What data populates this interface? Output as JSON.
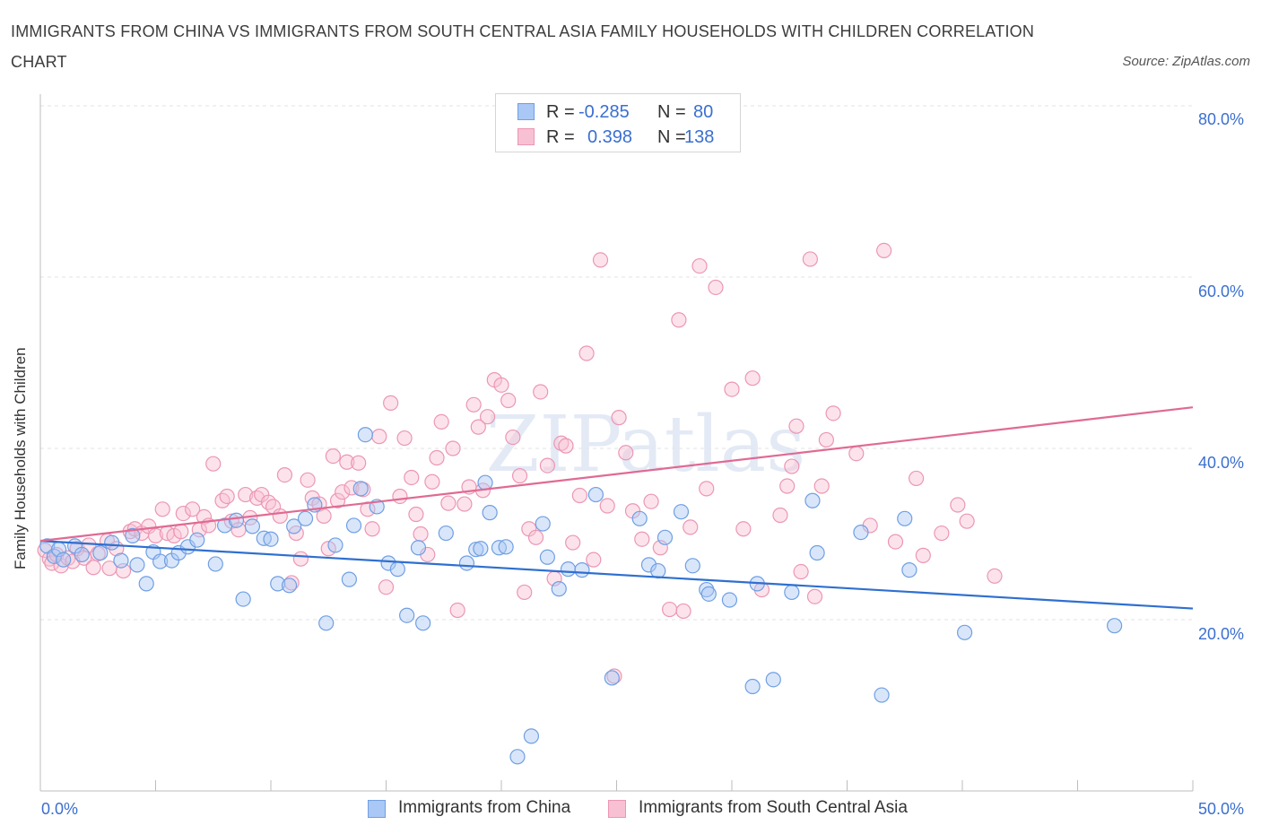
{
  "title": "IMMIGRANTS FROM CHINA VS IMMIGRANTS FROM SOUTH CENTRAL ASIA FAMILY HOUSEHOLDS WITH CHILDREN CORRELATION CHART",
  "source": "Source: ZipAtlas.com",
  "watermark": "ZIPatlas",
  "colors": {
    "china_fill": "#aac8f5",
    "china_stroke": "#6f9fe3",
    "china_line": "#2f6fd0",
    "sca_fill": "#f8c0d3",
    "sca_stroke": "#ec96b4",
    "sca_line": "#e06a93",
    "axis_label": "#3a6fd0"
  },
  "legend": {
    "r_label": "R =",
    "n_label": "N =",
    "rows": [
      {
        "series": "china",
        "r": "-0.285",
        "n": "80"
      },
      {
        "series": "sca",
        "r": "0.398",
        "n": "138"
      }
    ]
  },
  "bottom_legend": {
    "china": "Immigrants from China",
    "sca": "Immigrants from South Central Asia"
  },
  "chart_data": {
    "type": "scatter",
    "title": "IMMIGRANTS FROM CHINA VS IMMIGRANTS FROM SOUTH CENTRAL ASIA FAMILY HOUSEHOLDS WITH CHILDREN CORRELATION CHART",
    "xlabel": "",
    "ylabel": "Family Households with Children",
    "xlim": [
      0,
      50
    ],
    "ylim": [
      0,
      80
    ],
    "x_tick_labels": [
      "0.0%",
      "50.0%"
    ],
    "y_ticks": [
      20,
      40,
      60,
      80
    ],
    "y_tick_labels": [
      "20.0%",
      "40.0%",
      "60.0%",
      "80.0%"
    ],
    "grid": true,
    "legend_position": "top-center",
    "series": [
      {
        "name": "Immigrants from China",
        "key": "china",
        "R": -0.285,
        "N": 80,
        "trend": {
          "x": [
            0,
            50
          ],
          "y": [
            29.2,
            21.3
          ]
        },
        "points": [
          [
            0.3,
            28.6
          ],
          [
            0.6,
            27.4
          ],
          [
            0.8,
            28.2
          ],
          [
            1.0,
            27.0
          ],
          [
            1.5,
            28.6
          ],
          [
            1.8,
            27.6
          ],
          [
            2.6,
            27.8
          ],
          [
            3.1,
            29.0
          ],
          [
            3.5,
            26.9
          ],
          [
            4.0,
            29.8
          ],
          [
            4.2,
            26.4
          ],
          [
            4.6,
            24.2
          ],
          [
            4.9,
            27.9
          ],
          [
            5.2,
            26.8
          ],
          [
            5.7,
            26.9
          ],
          [
            6.0,
            27.8
          ],
          [
            6.4,
            28.5
          ],
          [
            6.8,
            29.3
          ],
          [
            7.6,
            26.5
          ],
          [
            8.0,
            31.0
          ],
          [
            8.5,
            31.6
          ],
          [
            8.8,
            22.4
          ],
          [
            9.2,
            30.9
          ],
          [
            9.7,
            29.5
          ],
          [
            10.0,
            29.4
          ],
          [
            10.3,
            24.2
          ],
          [
            10.8,
            24.0
          ],
          [
            11.0,
            30.9
          ],
          [
            11.5,
            31.8
          ],
          [
            11.9,
            33.4
          ],
          [
            12.4,
            19.6
          ],
          [
            12.8,
            28.7
          ],
          [
            13.4,
            24.7
          ],
          [
            13.6,
            31.0
          ],
          [
            13.9,
            35.3
          ],
          [
            14.1,
            41.6
          ],
          [
            14.6,
            33.2
          ],
          [
            15.1,
            26.6
          ],
          [
            15.5,
            25.9
          ],
          [
            15.9,
            20.5
          ],
          [
            16.4,
            28.4
          ],
          [
            16.6,
            19.6
          ],
          [
            17.6,
            30.1
          ],
          [
            18.5,
            26.6
          ],
          [
            18.9,
            28.2
          ],
          [
            19.1,
            28.3
          ],
          [
            19.3,
            36.0
          ],
          [
            19.5,
            32.5
          ],
          [
            19.9,
            28.4
          ],
          [
            20.2,
            28.5
          ],
          [
            20.7,
            4.0
          ],
          [
            21.3,
            6.4
          ],
          [
            21.8,
            31.2
          ],
          [
            22.0,
            27.3
          ],
          [
            22.5,
            23.6
          ],
          [
            22.9,
            25.9
          ],
          [
            23.5,
            25.8
          ],
          [
            24.1,
            34.6
          ],
          [
            24.8,
            13.2
          ],
          [
            26.0,
            31.8
          ],
          [
            26.4,
            26.4
          ],
          [
            26.8,
            25.7
          ],
          [
            27.1,
            29.6
          ],
          [
            27.8,
            32.6
          ],
          [
            28.3,
            26.3
          ],
          [
            28.9,
            23.5
          ],
          [
            29.0,
            23.0
          ],
          [
            29.9,
            22.3
          ],
          [
            30.9,
            12.2
          ],
          [
            31.1,
            24.2
          ],
          [
            31.8,
            13.0
          ],
          [
            32.6,
            23.2
          ],
          [
            33.5,
            33.9
          ],
          [
            33.7,
            27.8
          ],
          [
            35.6,
            30.2
          ],
          [
            36.5,
            11.2
          ],
          [
            37.5,
            31.8
          ],
          [
            37.7,
            25.8
          ],
          [
            40.1,
            18.5
          ],
          [
            46.6,
            19.3
          ]
        ]
      },
      {
        "name": "Immigrants from South Central Asia",
        "key": "sca",
        "R": 0.398,
        "N": 138,
        "trend": {
          "x": [
            0,
            50
          ],
          "y": [
            29.2,
            44.8
          ]
        },
        "points": [
          [
            0.2,
            28.1
          ],
          [
            0.4,
            27.1
          ],
          [
            0.5,
            26.6
          ],
          [
            0.7,
            27.6
          ],
          [
            0.9,
            26.3
          ],
          [
            1.2,
            27.2
          ],
          [
            1.4,
            26.8
          ],
          [
            1.6,
            28.3
          ],
          [
            1.9,
            27.2
          ],
          [
            2.1,
            28.7
          ],
          [
            2.3,
            26.1
          ],
          [
            2.5,
            27.7
          ],
          [
            2.9,
            29.2
          ],
          [
            3.0,
            26.0
          ],
          [
            3.3,
            28.3
          ],
          [
            3.6,
            25.7
          ],
          [
            3.9,
            30.3
          ],
          [
            4.1,
            30.6
          ],
          [
            4.4,
            30.1
          ],
          [
            4.7,
            30.9
          ],
          [
            5.0,
            29.8
          ],
          [
            5.3,
            32.9
          ],
          [
            5.5,
            30.1
          ],
          [
            5.8,
            29.8
          ],
          [
            6.1,
            30.3
          ],
          [
            6.2,
            32.4
          ],
          [
            6.6,
            32.9
          ],
          [
            6.9,
            30.5
          ],
          [
            7.1,
            32.0
          ],
          [
            7.3,
            31.0
          ],
          [
            7.5,
            38.2
          ],
          [
            7.9,
            33.9
          ],
          [
            8.1,
            34.4
          ],
          [
            8.3,
            31.5
          ],
          [
            8.6,
            30.5
          ],
          [
            8.9,
            34.6
          ],
          [
            9.1,
            31.9
          ],
          [
            9.4,
            34.2
          ],
          [
            9.6,
            34.6
          ],
          [
            9.9,
            33.7
          ],
          [
            10.1,
            33.2
          ],
          [
            10.4,
            32.1
          ],
          [
            10.6,
            36.9
          ],
          [
            10.9,
            24.3
          ],
          [
            11.1,
            30.1
          ],
          [
            11.3,
            27.1
          ],
          [
            11.6,
            36.3
          ],
          [
            11.8,
            34.2
          ],
          [
            12.1,
            33.5
          ],
          [
            12.3,
            32.1
          ],
          [
            12.5,
            28.3
          ],
          [
            12.7,
            39.1
          ],
          [
            12.9,
            33.9
          ],
          [
            13.1,
            34.9
          ],
          [
            13.3,
            38.4
          ],
          [
            13.5,
            35.4
          ],
          [
            13.8,
            38.3
          ],
          [
            14.0,
            35.2
          ],
          [
            14.2,
            32.9
          ],
          [
            14.4,
            30.6
          ],
          [
            14.7,
            41.4
          ],
          [
            15.0,
            23.8
          ],
          [
            15.2,
            45.3
          ],
          [
            15.6,
            34.4
          ],
          [
            15.8,
            41.2
          ],
          [
            16.1,
            36.6
          ],
          [
            16.3,
            32.3
          ],
          [
            16.5,
            30.0
          ],
          [
            16.8,
            27.6
          ],
          [
            17.0,
            36.1
          ],
          [
            17.2,
            38.9
          ],
          [
            17.4,
            43.1
          ],
          [
            17.7,
            33.6
          ],
          [
            17.9,
            40.0
          ],
          [
            18.1,
            21.1
          ],
          [
            18.4,
            33.5
          ],
          [
            18.6,
            35.5
          ],
          [
            18.8,
            45.1
          ],
          [
            19.0,
            42.5
          ],
          [
            19.2,
            35.1
          ],
          [
            19.4,
            43.7
          ],
          [
            19.7,
            48.0
          ],
          [
            20.0,
            47.4
          ],
          [
            20.3,
            45.6
          ],
          [
            20.5,
            41.3
          ],
          [
            20.8,
            36.8
          ],
          [
            21.0,
            23.2
          ],
          [
            21.2,
            30.6
          ],
          [
            21.5,
            29.6
          ],
          [
            21.7,
            46.6
          ],
          [
            22.0,
            38.0
          ],
          [
            22.3,
            24.8
          ],
          [
            22.6,
            40.6
          ],
          [
            22.8,
            40.3
          ],
          [
            23.1,
            29.0
          ],
          [
            23.4,
            34.5
          ],
          [
            23.7,
            51.1
          ],
          [
            24.0,
            27.0
          ],
          [
            24.3,
            62.0
          ],
          [
            24.6,
            33.3
          ],
          [
            24.9,
            13.4
          ],
          [
            25.1,
            43.6
          ],
          [
            25.4,
            39.5
          ],
          [
            25.7,
            32.7
          ],
          [
            26.1,
            29.4
          ],
          [
            26.5,
            33.8
          ],
          [
            26.9,
            28.4
          ],
          [
            27.3,
            21.2
          ],
          [
            27.7,
            55.0
          ],
          [
            27.9,
            21.0
          ],
          [
            28.2,
            30.8
          ],
          [
            28.6,
            61.3
          ],
          [
            28.9,
            35.3
          ],
          [
            29.3,
            58.8
          ],
          [
            30.0,
            46.9
          ],
          [
            30.5,
            30.6
          ],
          [
            30.9,
            48.2
          ],
          [
            31.3,
            23.5
          ],
          [
            32.1,
            32.2
          ],
          [
            32.4,
            35.6
          ],
          [
            32.6,
            37.9
          ],
          [
            33.0,
            25.6
          ],
          [
            33.4,
            62.1
          ],
          [
            33.6,
            22.7
          ],
          [
            33.9,
            35.6
          ],
          [
            34.1,
            41.0
          ],
          [
            34.4,
            44.1
          ],
          [
            35.4,
            39.4
          ],
          [
            36.0,
            31.0
          ],
          [
            36.6,
            63.1
          ],
          [
            32.8,
            42.6
          ],
          [
            37.1,
            29.1
          ],
          [
            38.0,
            36.5
          ],
          [
            38.3,
            27.5
          ],
          [
            39.1,
            30.1
          ],
          [
            39.8,
            33.4
          ],
          [
            40.2,
            31.5
          ],
          [
            41.4,
            25.1
          ]
        ]
      }
    ]
  }
}
